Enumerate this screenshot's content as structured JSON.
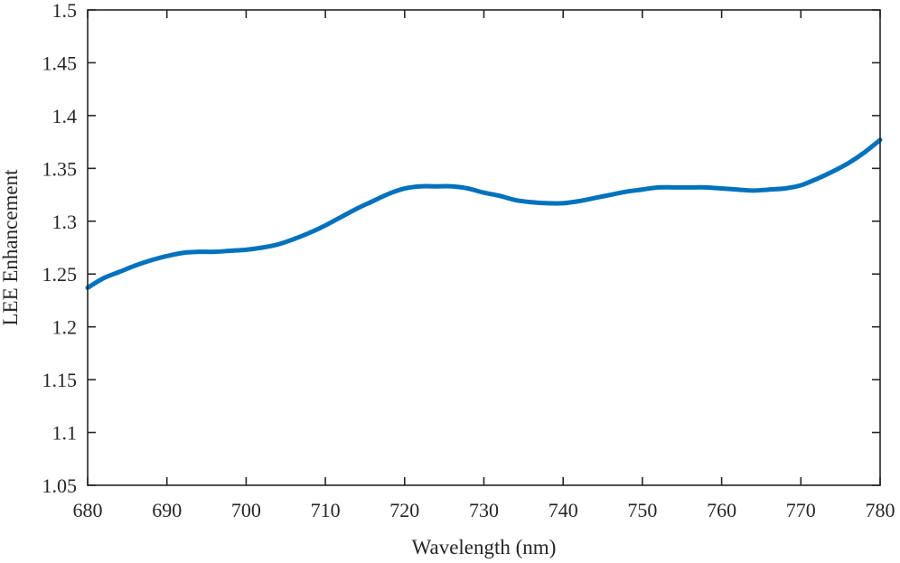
{
  "chart_data": {
    "type": "line",
    "title": "",
    "xlabel": "Wavelength (nm)",
    "ylabel": "LEE Enhancement",
    "xlim": [
      680,
      780
    ],
    "ylim": [
      1.05,
      1.5
    ],
    "xticks": [
      680,
      690,
      700,
      710,
      720,
      730,
      740,
      750,
      760,
      770,
      780
    ],
    "yticks": [
      1.05,
      1.1,
      1.15,
      1.2,
      1.25,
      1.3,
      1.35,
      1.4,
      1.45,
      1.5
    ],
    "xtick_labels": [
      "680",
      "690",
      "700",
      "710",
      "720",
      "730",
      "740",
      "750",
      "760",
      "770",
      "780"
    ],
    "ytick_labels": [
      "1.05",
      "1.1",
      "1.15",
      "1.2",
      "1.25",
      "1.3",
      "1.35",
      "1.4",
      "1.45",
      "1.5"
    ],
    "grid": false,
    "line_color": "#0072BD",
    "series": [
      {
        "x": [
          680,
          682,
          684,
          686,
          688,
          690,
          692,
          694,
          696,
          698,
          700,
          702,
          704,
          706,
          708,
          710,
          712,
          714,
          716,
          718,
          720,
          722,
          724,
          726,
          728,
          730,
          732,
          734,
          736,
          738,
          740,
          742,
          744,
          746,
          748,
          750,
          752,
          754,
          756,
          758,
          760,
          762,
          764,
          766,
          768,
          770,
          772,
          774,
          776,
          778,
          780
        ],
        "y": [
          1.237,
          1.246,
          1.252,
          1.258,
          1.263,
          1.267,
          1.27,
          1.271,
          1.271,
          1.272,
          1.273,
          1.275,
          1.278,
          1.283,
          1.289,
          1.296,
          1.304,
          1.312,
          1.319,
          1.326,
          1.331,
          1.333,
          1.333,
          1.333,
          1.331,
          1.327,
          1.324,
          1.32,
          1.318,
          1.317,
          1.317,
          1.319,
          1.322,
          1.325,
          1.328,
          1.33,
          1.332,
          1.332,
          1.332,
          1.332,
          1.331,
          1.33,
          1.329,
          1.33,
          1.331,
          1.334,
          1.34,
          1.347,
          1.355,
          1.365,
          1.377
        ]
      }
    ]
  }
}
